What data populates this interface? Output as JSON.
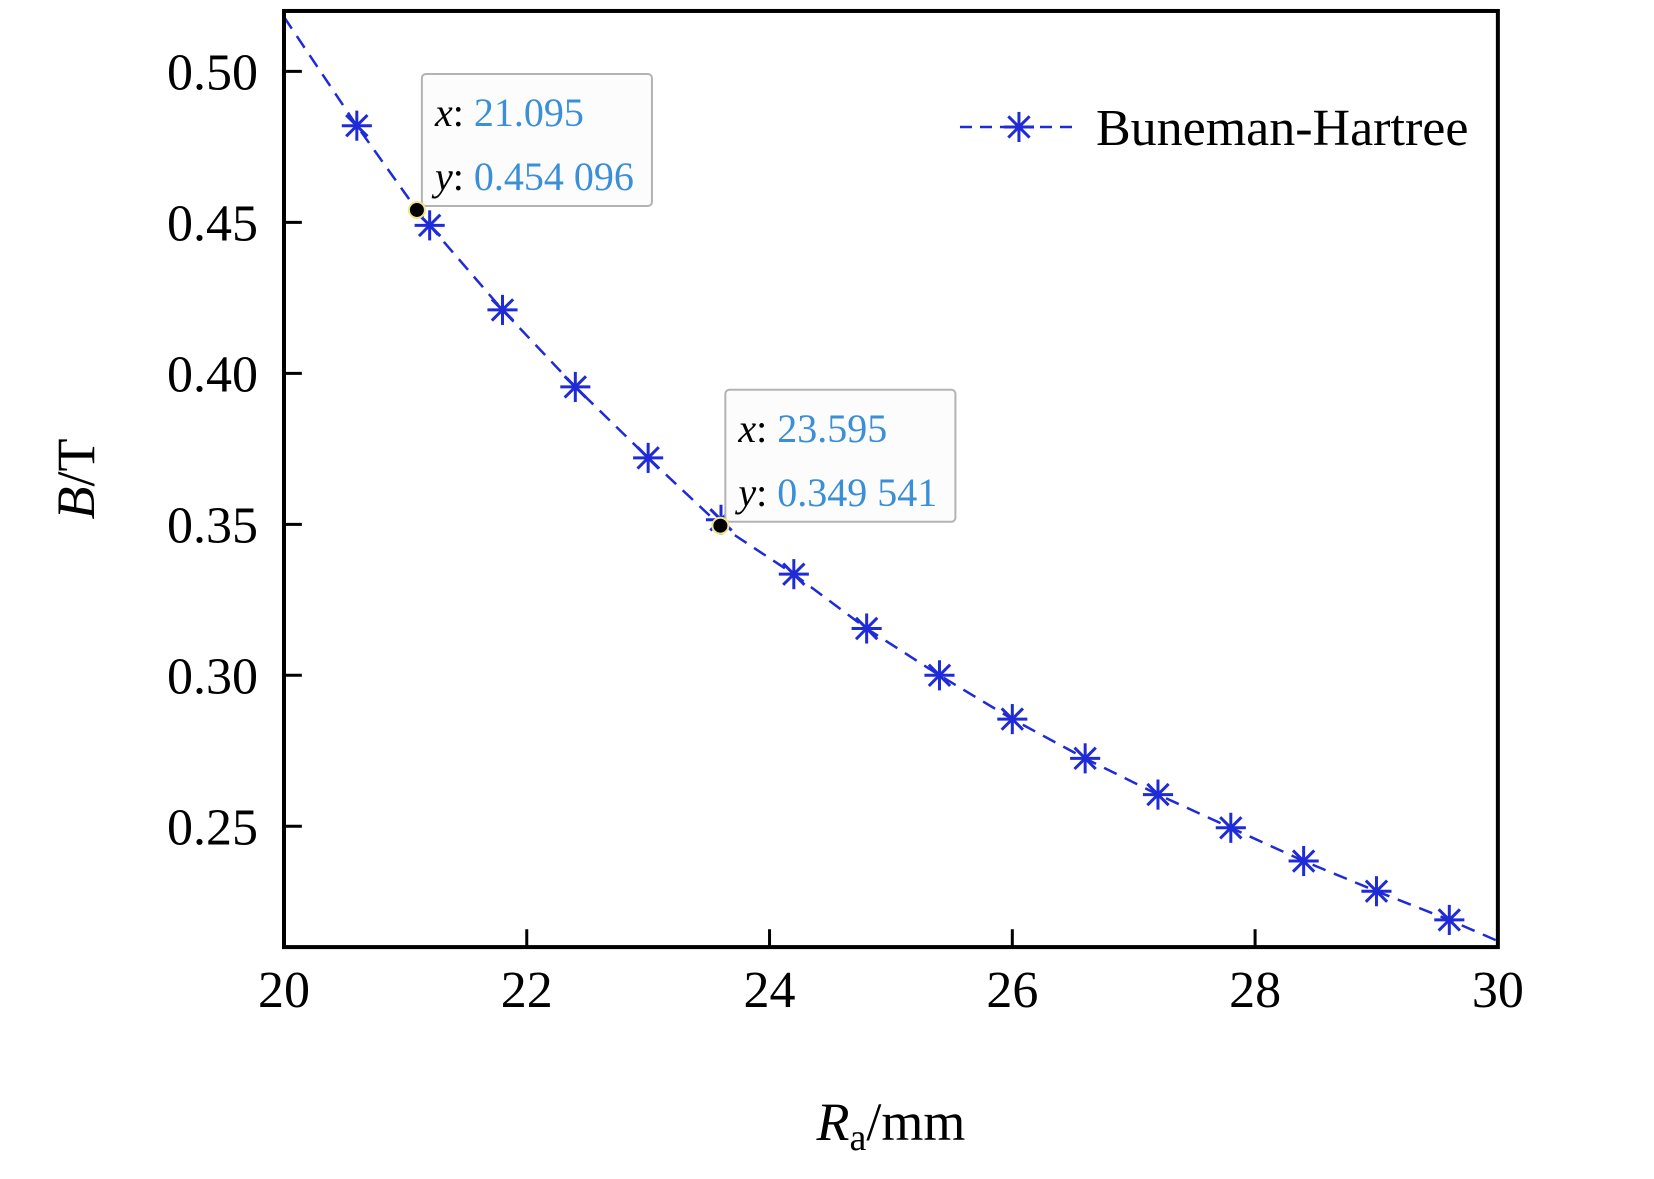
{
  "chart_data": {
    "type": "line",
    "title": "",
    "xlabel": {
      "main": "R",
      "sub": "a",
      "unit": "/mm"
    },
    "ylabel": {
      "main": "B",
      "unit": "/T"
    },
    "xlim": [
      20,
      30
    ],
    "ylim": [
      0.21,
      0.52
    ],
    "x_ticks": [
      20,
      22,
      24,
      26,
      28,
      30
    ],
    "x_tick_labels": [
      "20",
      "22",
      "24",
      "26",
      "28",
      "30"
    ],
    "y_ticks": [
      0.25,
      0.3,
      0.35,
      0.4,
      0.45,
      0.5
    ],
    "y_tick_labels": [
      "0.25",
      "0.30",
      "0.35",
      "0.40",
      "0.45",
      "0.50"
    ],
    "grid": false,
    "legend_position": "top-right",
    "series": [
      {
        "name": "Buneman-Hartree",
        "color": "#1f2bd6",
        "line_style": "dashed",
        "marker": "asterisk",
        "curve_x": [
          20.0,
          20.6,
          21.095,
          21.2,
          21.8,
          22.4,
          23.0,
          23.595,
          24.2,
          24.8,
          25.4,
          26.0,
          26.6,
          27.2,
          27.8,
          28.4,
          29.0,
          29.6,
          30.0
        ],
        "curve_y": [
          0.518,
          0.482,
          0.454096,
          0.449,
          0.421,
          0.3955,
          0.372,
          0.349541,
          0.3335,
          0.3155,
          0.3,
          0.2855,
          0.2725,
          0.2605,
          0.2495,
          0.2385,
          0.2285,
          0.219,
          0.212
        ],
        "x": [
          20.6,
          21.2,
          21.8,
          22.4,
          23.0,
          23.6,
          24.2,
          24.8,
          25.4,
          26.0,
          26.6,
          27.2,
          27.8,
          28.4,
          29.0,
          29.6
        ],
        "y": [
          0.482,
          0.449,
          0.421,
          0.3955,
          0.372,
          0.3515,
          0.3335,
          0.3155,
          0.3,
          0.2855,
          0.2725,
          0.2605,
          0.2495,
          0.2385,
          0.2285,
          0.219
        ]
      }
    ],
    "datatips": [
      {
        "x_key": "x",
        "y_key": "y",
        "x_value": "21.095",
        "y_value": "0.454 096",
        "x": 21.095,
        "y": 0.454096,
        "value_color": "#3a8fd6"
      },
      {
        "x_key": "x",
        "y_key": "y",
        "x_value": "23.595",
        "y_value": "0.349 541",
        "x": 23.595,
        "y": 0.349541,
        "value_color": "#3a8fd6"
      }
    ]
  }
}
